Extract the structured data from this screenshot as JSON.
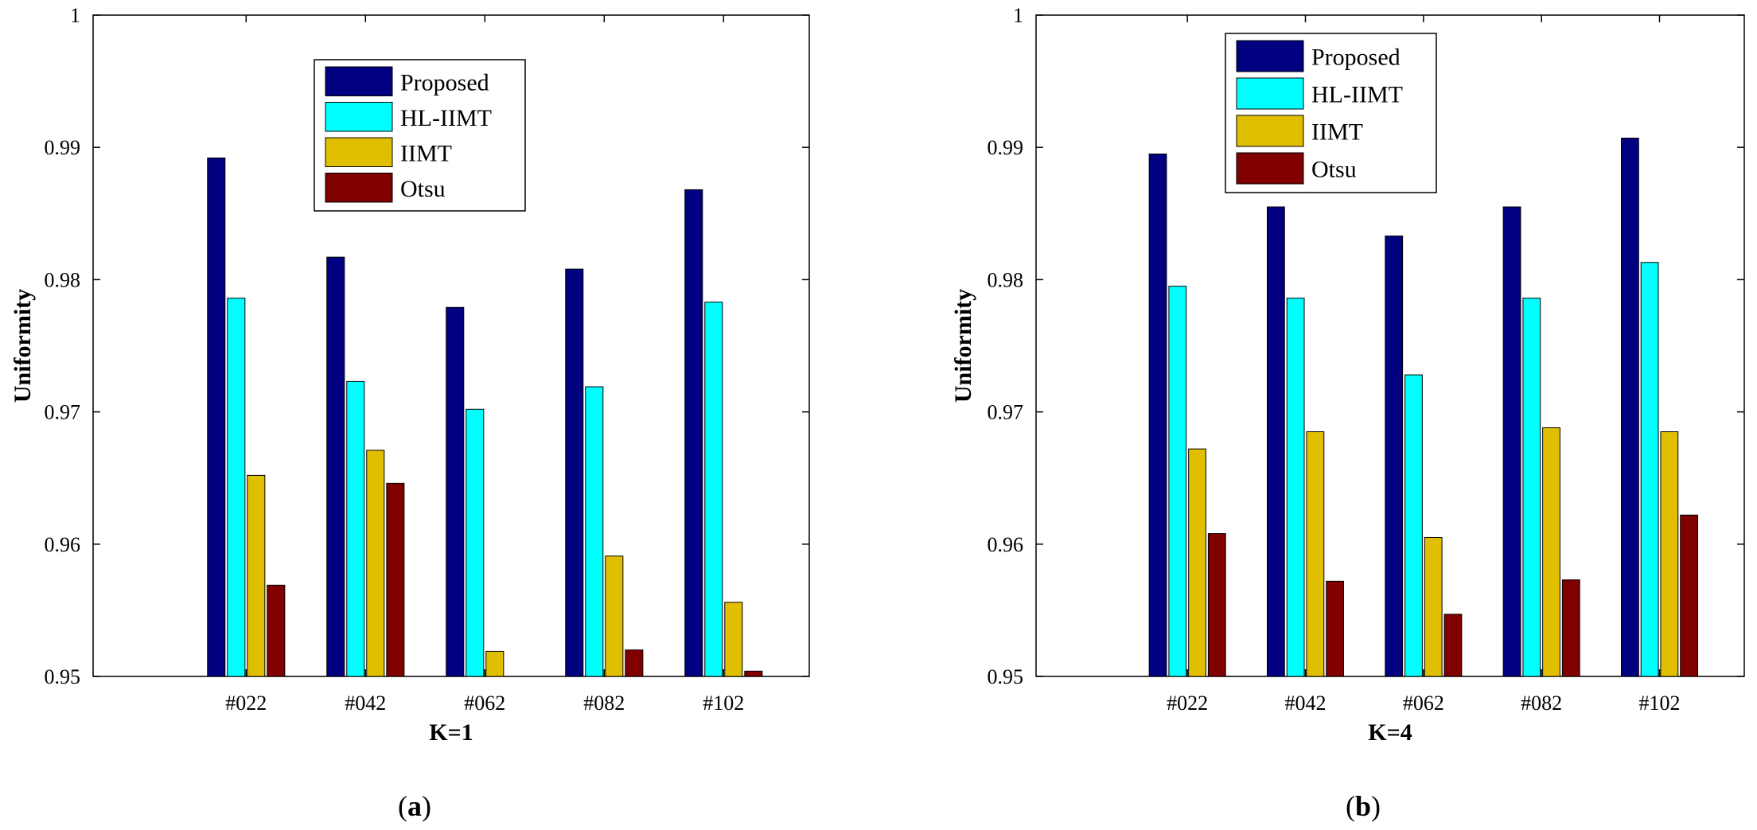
{
  "chart_data": [
    {
      "type": "bar",
      "panel": "a",
      "caption": "(a)",
      "xlabel": "K=1",
      "ylabel": "Uniformity",
      "ylim": [
        0.95,
        1.0
      ],
      "yticks": [
        "0.95",
        "0.96",
        "0.97",
        "0.98",
        "0.99",
        "1"
      ],
      "categories": [
        "#022",
        "#042",
        "#062",
        "#082",
        "#102"
      ],
      "legend_position": "top-center",
      "series": [
        {
          "name": "Proposed",
          "color": "#000080",
          "values": [
            0.9892,
            0.9817,
            0.9779,
            0.9808,
            0.9868
          ]
        },
        {
          "name": "HL-IIMT",
          "color": "#00FFFF",
          "values": [
            0.9786,
            0.9723,
            0.9702,
            0.9719,
            0.9783
          ]
        },
        {
          "name": "IIMT",
          "color": "#E0BE00",
          "values": [
            0.9652,
            0.9671,
            0.9519,
            0.9591,
            0.9556
          ]
        },
        {
          "name": "Otsu",
          "color": "#800000",
          "values": [
            0.9569,
            0.9646,
            0.95,
            0.952,
            0.9504
          ]
        }
      ]
    },
    {
      "type": "bar",
      "panel": "b",
      "caption": "(b)",
      "xlabel": "K=4",
      "ylabel": "Uniformity",
      "ylim": [
        0.95,
        1.0
      ],
      "yticks": [
        "0.95",
        "0.96",
        "0.97",
        "0.98",
        "0.99",
        "1"
      ],
      "categories": [
        "#022",
        "#042",
        "#062",
        "#082",
        "#102"
      ],
      "legend_position": "top-center",
      "series": [
        {
          "name": "Proposed",
          "color": "#000080",
          "values": [
            0.9895,
            0.9855,
            0.9833,
            0.9855,
            0.9907
          ]
        },
        {
          "name": "HL-IIMT",
          "color": "#00FFFF",
          "values": [
            0.9795,
            0.9786,
            0.9728,
            0.9786,
            0.9813
          ]
        },
        {
          "name": "IIMT",
          "color": "#E0BE00",
          "values": [
            0.9672,
            0.9685,
            0.9605,
            0.9688,
            0.9685
          ]
        },
        {
          "name": "Otsu",
          "color": "#800000",
          "values": [
            0.9608,
            0.9572,
            0.9547,
            0.9573,
            0.9622
          ]
        }
      ]
    }
  ]
}
